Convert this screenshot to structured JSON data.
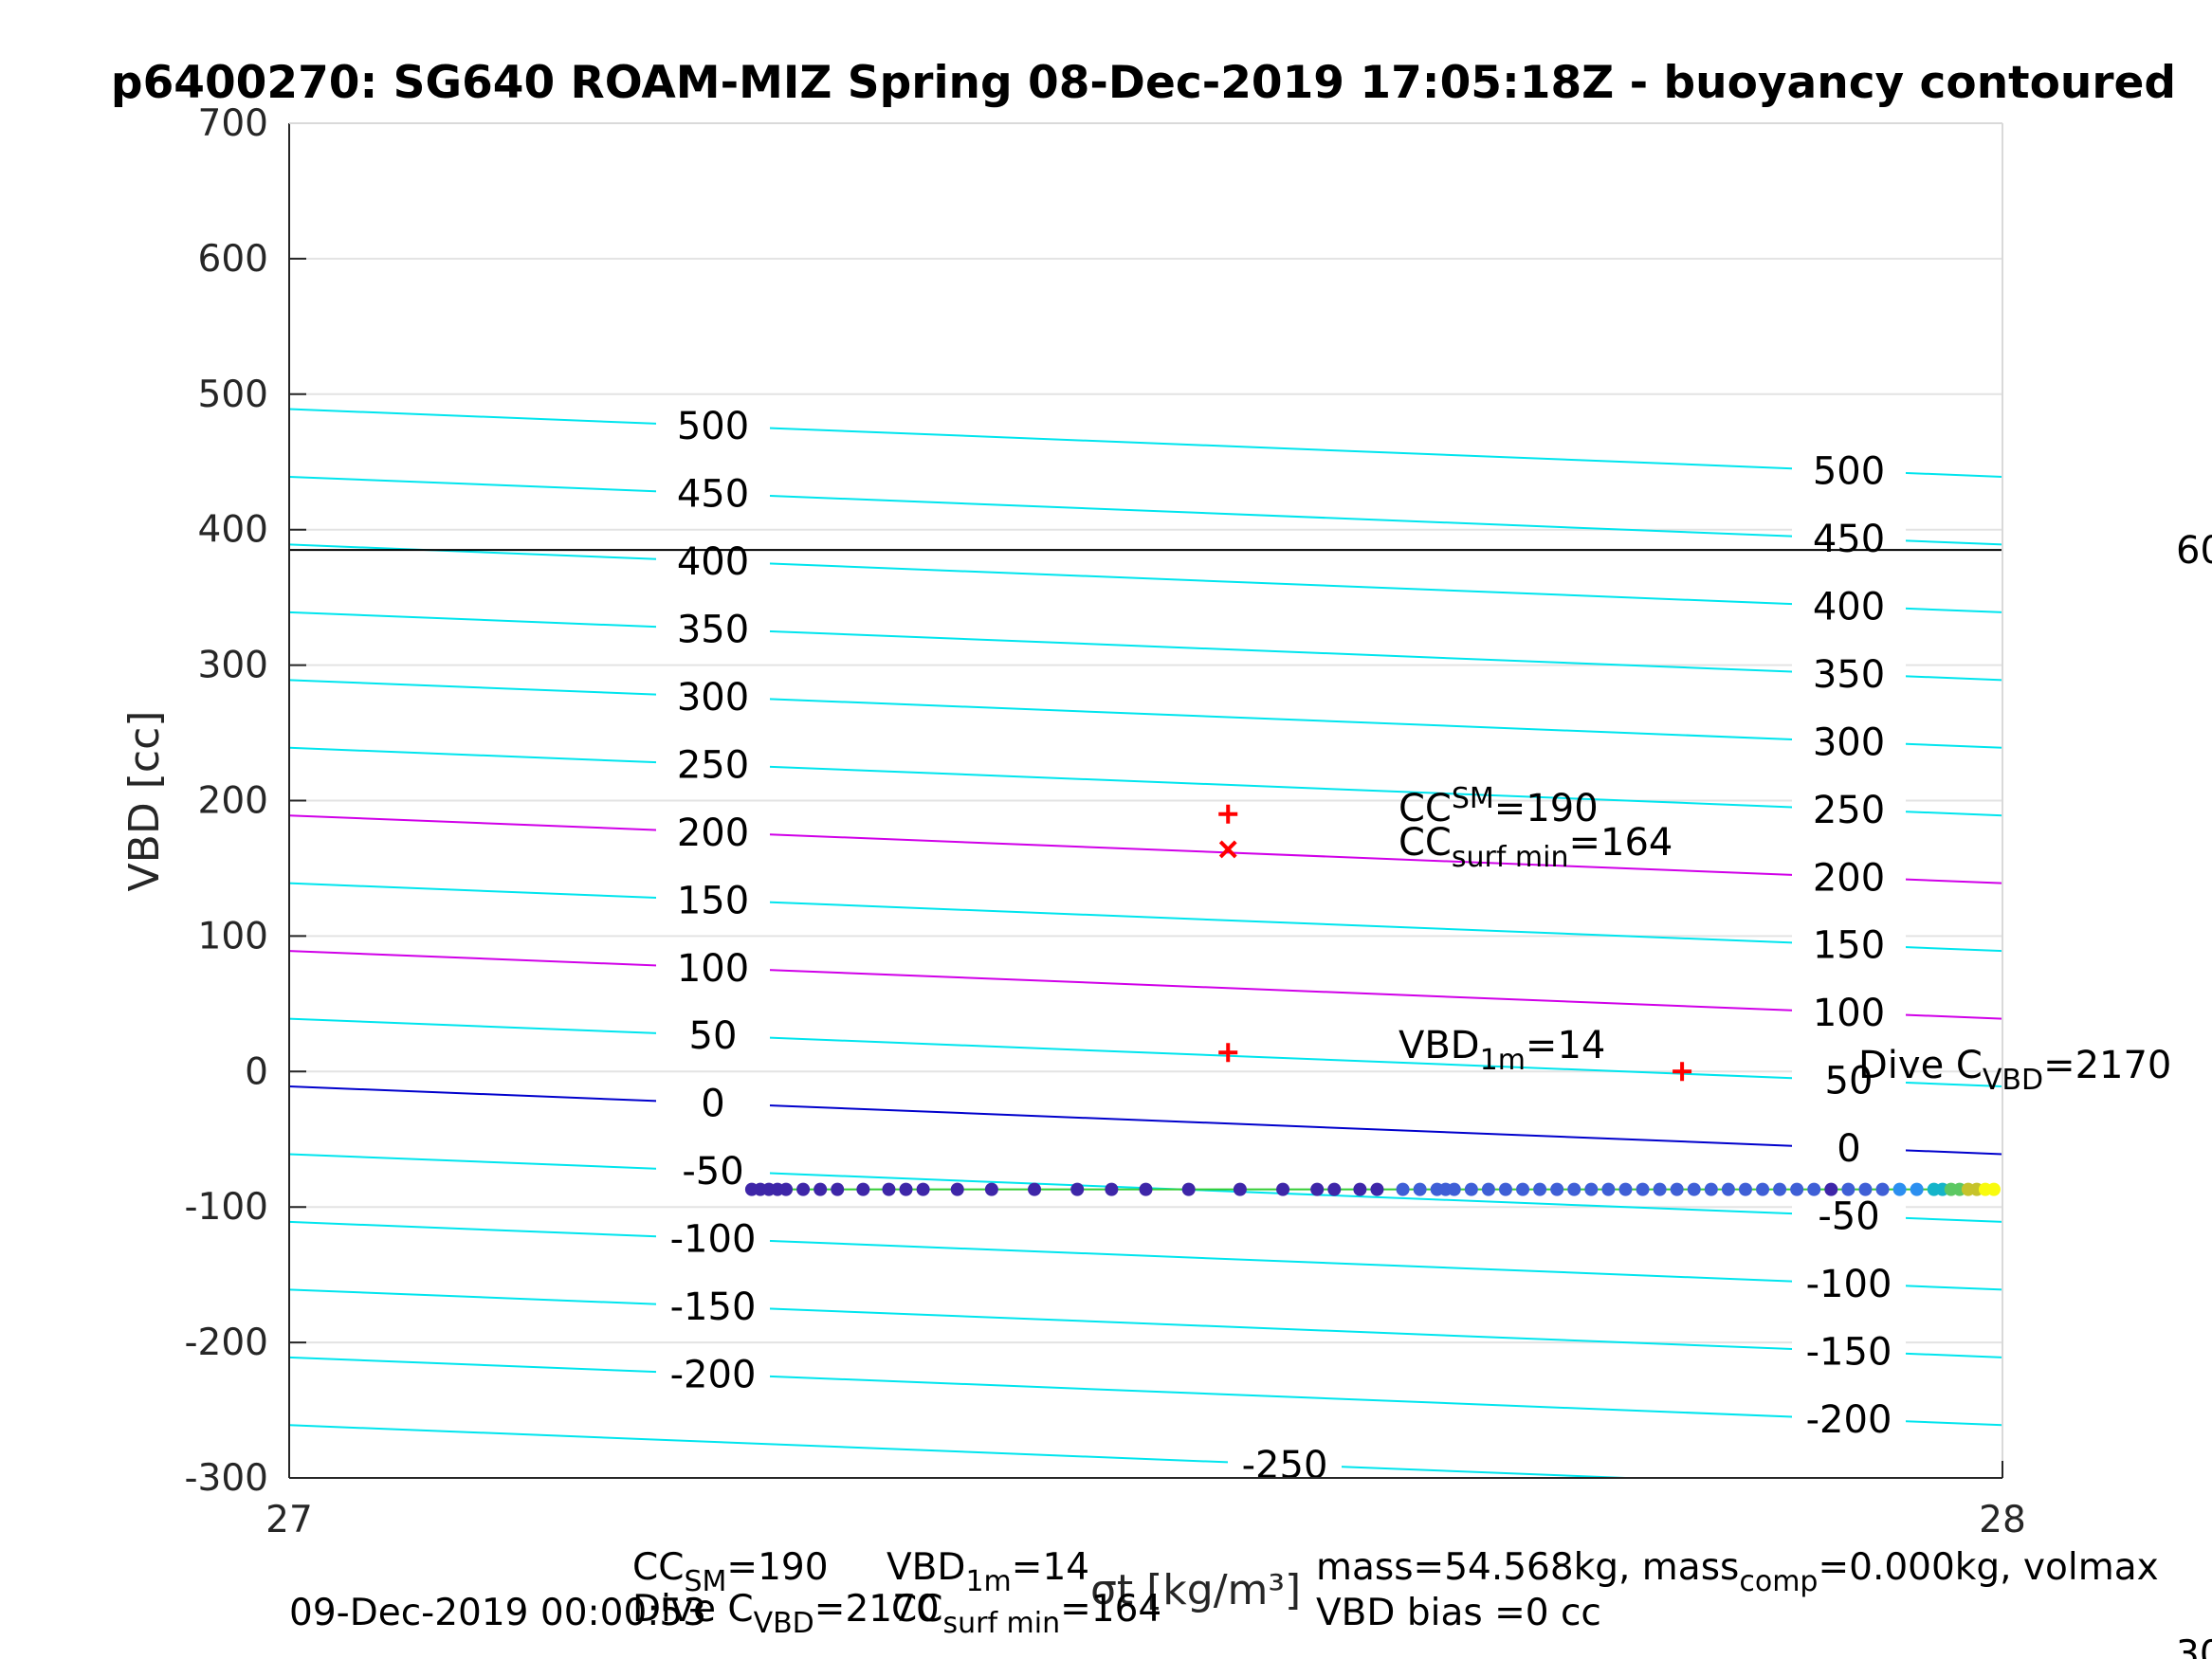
{
  "chart_data": {
    "type": "scatter",
    "title": "p6400270: SG640 ROAM-MIZ Spring 08-Dec-2019 17:05:18Z - buoyancy contoured",
    "xlabel": "σt [kg/m³]",
    "ylabel": "VBD [cc]",
    "xlim": [
      27,
      28
    ],
    "ylim": [
      -300,
      700
    ],
    "xticks": [
      "27",
      "28"
    ],
    "yticks": [
      "-300",
      "-200",
      "-100",
      "0",
      "100",
      "200",
      "300",
      "400",
      "500",
      "600",
      "700"
    ],
    "grid": true,
    "contours": [
      {
        "level": 500,
        "y_left": 489,
        "y_right": 439,
        "label_left": "500",
        "label_right": "500",
        "color": "#00e5ee"
      },
      {
        "level": 450,
        "y_left": 439,
        "y_right": 389,
        "label_left": "450",
        "label_right": "450",
        "color": "#00e5ee"
      },
      {
        "level": 400,
        "y_left": 389,
        "y_right": 339,
        "label_left": "400",
        "label_right": "400",
        "color": "#00e5ee"
      },
      {
        "level": 350,
        "y_left": 339,
        "y_right": 289,
        "label_left": "350",
        "label_right": "350",
        "color": "#00e5ee"
      },
      {
        "level": 300,
        "y_left": 289,
        "y_right": 239,
        "label_left": "300",
        "label_right": "300",
        "color": "#00e5ee"
      },
      {
        "level": 250,
        "y_left": 239,
        "y_right": 189,
        "label_left": "250",
        "label_right": "250",
        "color": "#00e5ee"
      },
      {
        "level": 200,
        "y_left": 189,
        "y_right": 139,
        "label_left": "200",
        "label_right": "200",
        "color": "#d000e8"
      },
      {
        "level": 150,
        "y_left": 139,
        "y_right": 89,
        "label_left": "150",
        "label_right": "150",
        "color": "#00e5ee"
      },
      {
        "level": 100,
        "y_left": 89,
        "y_right": 39,
        "label_left": "100",
        "label_right": "100",
        "color": "#d000e8"
      },
      {
        "level": 50,
        "y_left": 39,
        "y_right": -11,
        "label_left": "50",
        "label_right": "50",
        "color": "#00e5ee"
      },
      {
        "level": 0,
        "y_left": -11,
        "y_right": -61,
        "label_left": "0",
        "label_right": "0",
        "color": "#0000cc"
      },
      {
        "level": -50,
        "y_left": -61,
        "y_right": -111,
        "label_left": "-50",
        "label_right": "-50",
        "color": "#00e5ee"
      },
      {
        "level": -100,
        "y_left": -111,
        "y_right": -161,
        "label_left": "-100",
        "label_right": "-100",
        "color": "#00e5ee"
      },
      {
        "level": -150,
        "y_left": -161,
        "y_right": -211,
        "label_left": "-150",
        "label_right": "-150",
        "color": "#00e5ee"
      },
      {
        "level": -200,
        "y_left": -211,
        "y_right": -261,
        "label_left": "-200",
        "label_right": "-200",
        "color": "#00e5ee"
      },
      {
        "level": -250,
        "y_left": -261,
        "y_right": -311,
        "label_left": "-250",
        "label_right": "",
        "color": "#00e5ee"
      }
    ],
    "reference_line": {
      "y": 385,
      "color": "#000000",
      "right_label": "60"
    },
    "dive_points": {
      "y": -87,
      "x": [
        27.27,
        27.275,
        27.28,
        27.285,
        27.29,
        27.3,
        27.31,
        27.32,
        27.335,
        27.35,
        27.36,
        27.37,
        27.39,
        27.41,
        27.435,
        27.46,
        27.48,
        27.5,
        27.525,
        27.555,
        27.58,
        27.6,
        27.61,
        27.625,
        27.635,
        27.65,
        27.66,
        27.67,
        27.675,
        27.68,
        27.69,
        27.7,
        27.71,
        27.72,
        27.73,
        27.74,
        27.75,
        27.76,
        27.77,
        27.78,
        27.79,
        27.8,
        27.81,
        27.82,
        27.83,
        27.84,
        27.85,
        27.86,
        27.87,
        27.88,
        27.89,
        27.9,
        27.91,
        27.92,
        27.93,
        27.94,
        27.95,
        27.96,
        27.965,
        27.97,
        27.975,
        27.98,
        27.985,
        27.99,
        27.995
      ],
      "colormap": [
        "#3e26a8",
        "#3f5fd6",
        "#2c8ff0",
        "#14b4c9",
        "#5cc863",
        "#c6c32b",
        "#f9fb0e"
      ],
      "line_color": "#33cc33"
    },
    "markers": [
      {
        "type": "plus",
        "x": 27.548,
        "y": 190,
        "color": "#ff0000"
      },
      {
        "type": "x",
        "x": 27.548,
        "y": 164,
        "color": "#ff0000"
      },
      {
        "type": "plus",
        "x": 27.548,
        "y": 14,
        "color": "#ff0000"
      },
      {
        "type": "plus",
        "x": 27.813,
        "y": 0,
        "color": "#ff0000"
      }
    ],
    "annotations": {
      "cc_sm": {
        "pre": "CC",
        "sub": "SM",
        "post": "=190"
      },
      "cc_surf": {
        "pre": "CC",
        "sub": "surf min",
        "post": "=164"
      },
      "vbd_1m": {
        "pre": "VBD",
        "sub": "1m",
        "post": "=14"
      },
      "dive_c": {
        "pre": "Dive C",
        "sub": "VBD",
        "post": "=2170"
      }
    },
    "footer": {
      "timestamp": "09-Dec-2019 00:00:53",
      "line1_cc": {
        "pre": "CC",
        "sub": "SM",
        "post": "=190"
      },
      "line1_vbd": {
        "pre": "VBD",
        "sub": "1m",
        "post": "=14"
      },
      "line2_dive": {
        "pre": "Dive C",
        "sub": "VBD",
        "post": "=2170"
      },
      "line2_cc": {
        "pre": "CC",
        "sub": "surf min",
        "post": "=164"
      },
      "mass_text": "mass=54.568kg, mass",
      "mass_sub": "comp",
      "mass_post": "=0.000kg, volmax",
      "bias": "VBD bias =0 cc",
      "right_edge": "30"
    }
  }
}
